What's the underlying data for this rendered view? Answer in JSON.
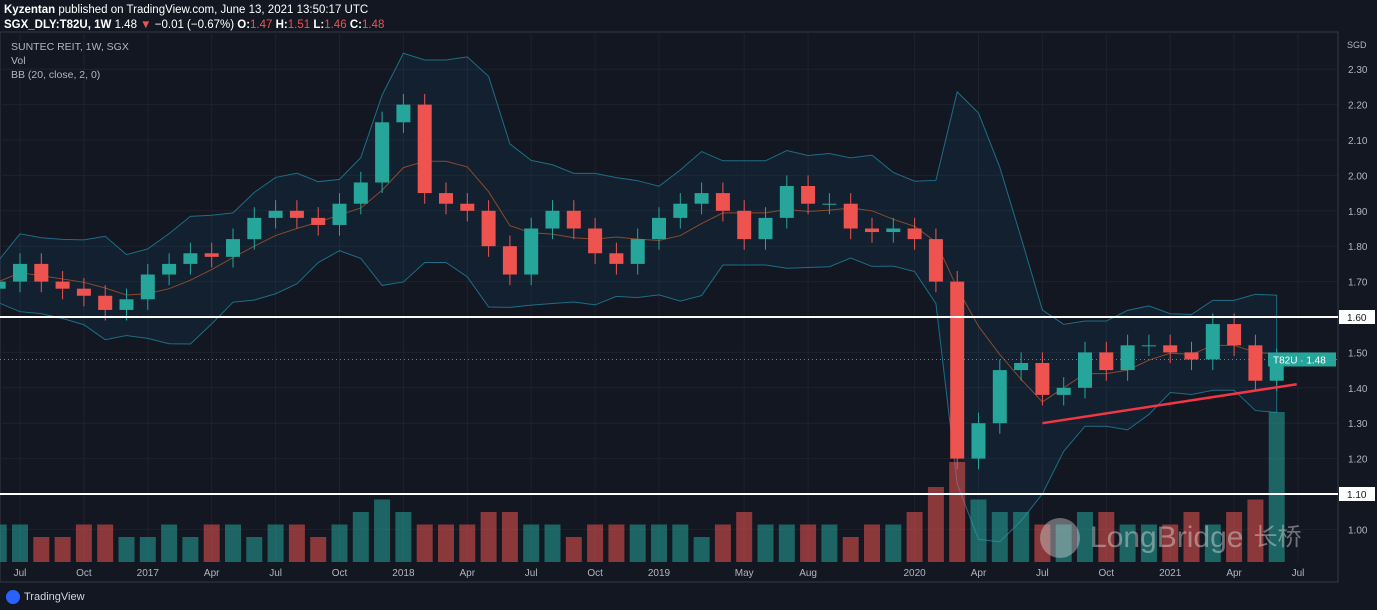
{
  "header": {
    "author": "Kyzentan",
    "published": "published on TradingView.com, June 13, 2021 13:50:17 UTC",
    "symbol": "SGX_DLY:T82U, 1W",
    "last": "1.48",
    "change": "−0.01 (−0.67%)",
    "o_label": "O:",
    "o": "1.47",
    "h_label": "H:",
    "h": "1.51",
    "l_label": "L:",
    "l": "1.46",
    "c_label": "C:",
    "c": "1.48"
  },
  "legend": {
    "title": "SUNTEC REIT, 1W, SGX",
    "vol": "Vol",
    "bb": "BB (20, close, 2, 0)"
  },
  "footer": {
    "brand": "TradingView"
  },
  "watermark": {
    "text": "LongBridge",
    "cn": "长桥"
  },
  "colors": {
    "up": "#26a69a",
    "down": "#ef5350",
    "band": "#2196f3",
    "basis": "#ff6d00",
    "hline": "#ffffff",
    "trend": "#f23645"
  },
  "chart_data": {
    "type": "candlestick",
    "currency": "SGD",
    "ylim": [
      0.95,
      2.35
    ],
    "y_ticks": [
      "2.30",
      "2.20",
      "2.10",
      "2.00",
      "1.90",
      "1.80",
      "1.70",
      "1.60",
      "1.50",
      "1.40",
      "1.30",
      "1.20",
      "1.10",
      "1.00"
    ],
    "x_ticks": [
      "Jul",
      "Oct",
      "2017",
      "Apr",
      "Jul",
      "Oct",
      "2018",
      "Apr",
      "Jul",
      "Oct",
      "2019",
      "May",
      "Aug",
      "2020",
      "Apr",
      "Jul",
      "Oct",
      "2021",
      "Apr",
      "Jul"
    ],
    "x_tick_months": [
      "2016-07",
      "2016-10",
      "2017-01",
      "2017-04",
      "2017-07",
      "2017-10",
      "2018-01",
      "2018-04",
      "2018-07",
      "2018-10",
      "2019-01",
      "2019-05",
      "2019-08",
      "2020-01",
      "2020-04",
      "2020-07",
      "2020-10",
      "2021-01",
      "2021-04",
      "2021-07"
    ],
    "start_month": "2016-06",
    "closes": [
      1.7,
      1.75,
      1.7,
      1.68,
      1.66,
      1.62,
      1.65,
      1.72,
      1.75,
      1.78,
      1.77,
      1.82,
      1.88,
      1.9,
      1.88,
      1.86,
      1.92,
      1.98,
      2.15,
      2.2,
      1.95,
      1.92,
      1.9,
      1.8,
      1.72,
      1.85,
      1.9,
      1.85,
      1.78,
      1.75,
      1.82,
      1.88,
      1.92,
      1.95,
      1.9,
      1.82,
      1.88,
      1.97,
      1.92,
      1.92,
      1.85,
      1.84,
      1.85,
      1.82,
      1.7,
      1.2,
      1.3,
      1.45,
      1.47,
      1.38,
      1.4,
      1.5,
      1.45,
      1.52,
      1.52,
      1.5,
      1.48,
      1.58,
      1.52,
      1.42,
      1.48
    ],
    "volumes": [
      3,
      3,
      2,
      2,
      3,
      3,
      2,
      2,
      3,
      2,
      3,
      3,
      2,
      3,
      3,
      2,
      3,
      4,
      5,
      4,
      3,
      3,
      3,
      4,
      4,
      3,
      3,
      2,
      3,
      3,
      3,
      3,
      3,
      2,
      3,
      4,
      3,
      3,
      3,
      3,
      2,
      3,
      3,
      4,
      6,
      8,
      5,
      4,
      4,
      3,
      3,
      4,
      4,
      3,
      3,
      3,
      4,
      3,
      4,
      5,
      12
    ],
    "hlines": [
      {
        "value": 1.6,
        "label": "1.60"
      },
      {
        "value": 1.1,
        "label": "1.10"
      }
    ],
    "trendline": {
      "from": [
        "2020-07",
        1.3
      ],
      "to": [
        "2021-06",
        1.41
      ]
    },
    "last_label": {
      "symbol": "T82U",
      "value": "1.48"
    }
  }
}
